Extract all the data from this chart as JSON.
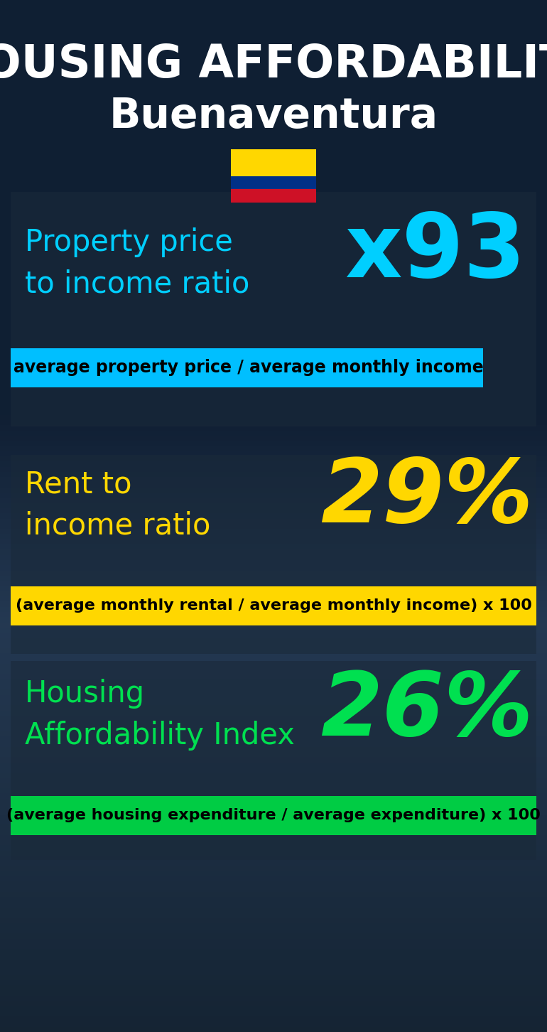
{
  "title_line1": "HOUSING AFFORDABILITY",
  "title_line2": "Buenaventura",
  "bg_color": "#0d1b2a",
  "metric1_label": "Property price\nto income ratio",
  "metric1_value": "x93",
  "metric1_label_color": "#00cfff",
  "metric1_value_color": "#00cfff",
  "metric1_formula": "average property price / average monthly income",
  "metric1_formula_bg": "#00bfff",
  "metric2_label": "Rent to\nincome ratio",
  "metric2_value": "29%",
  "metric2_label_color": "#FFD700",
  "metric2_value_color": "#FFD700",
  "metric2_formula": "(average monthly rental / average monthly income) x 100",
  "metric2_formula_bg": "#FFD700",
  "metric3_label": "Housing\nAffordability Index",
  "metric3_value": "26%",
  "metric3_label_color": "#00e050",
  "metric3_value_color": "#00e050",
  "metric3_formula": "(average housing expenditure / average expenditure) x 100",
  "metric3_formula_bg": "#00cc44",
  "flag_yellow": "#FFD700",
  "flag_blue": "#003087",
  "flag_red": "#CE1126",
  "panel_color": "#1a2a3a",
  "panel_alpha": 0.6
}
